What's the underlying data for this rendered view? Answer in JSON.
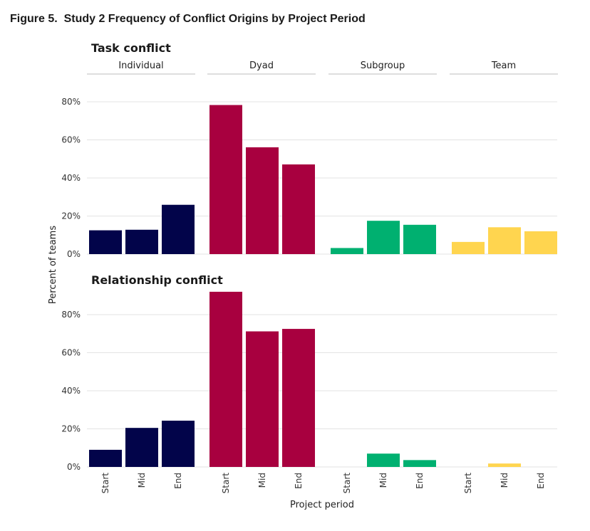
{
  "figure_title": "Figure 5.  Study 2 Frequency of Conflict Origins by Project Period",
  "colors": {
    "Individual": "#02044a",
    "Dyad": "#a8003f",
    "Subgroup": "#00b070",
    "Team": "#ffd54f",
    "grid": "#e3e3e3",
    "strip_line": "#bdbdbd"
  },
  "chart_data": {
    "type": "bar",
    "facets": [
      "Individual",
      "Dyad",
      "Subgroup",
      "Team"
    ],
    "categories": [
      "Start",
      "Mid",
      "End"
    ],
    "xlabel": "Project period",
    "ylabel": "Percent of teams",
    "ylim": [
      0,
      85
    ],
    "yticks": [
      "0%",
      "20%",
      "40%",
      "60%",
      "80%"
    ],
    "grid": true,
    "panels": [
      {
        "title": "Task conflict",
        "series": [
          {
            "group": "Individual",
            "values": [
              12.5,
              12.8,
              25.9
            ]
          },
          {
            "group": "Dyad",
            "values": [
              78.3,
              56.1,
              47.1
            ]
          },
          {
            "group": "Subgroup",
            "values": [
              3.2,
              17.5,
              15.4
            ]
          },
          {
            "group": "Team",
            "values": [
              6.4,
              14.1,
              12.0
            ]
          }
        ]
      },
      {
        "title": "Relationship conflict",
        "series": [
          {
            "group": "Individual",
            "values": [
              9.0,
              20.5,
              24.3
            ]
          },
          {
            "group": "Dyad",
            "values": [
              92.0,
              71.2,
              72.5
            ]
          },
          {
            "group": "Subgroup",
            "values": [
              0.0,
              7.0,
              3.6
            ]
          },
          {
            "group": "Team",
            "values": [
              0.0,
              1.8,
              0.0
            ]
          }
        ]
      }
    ]
  }
}
